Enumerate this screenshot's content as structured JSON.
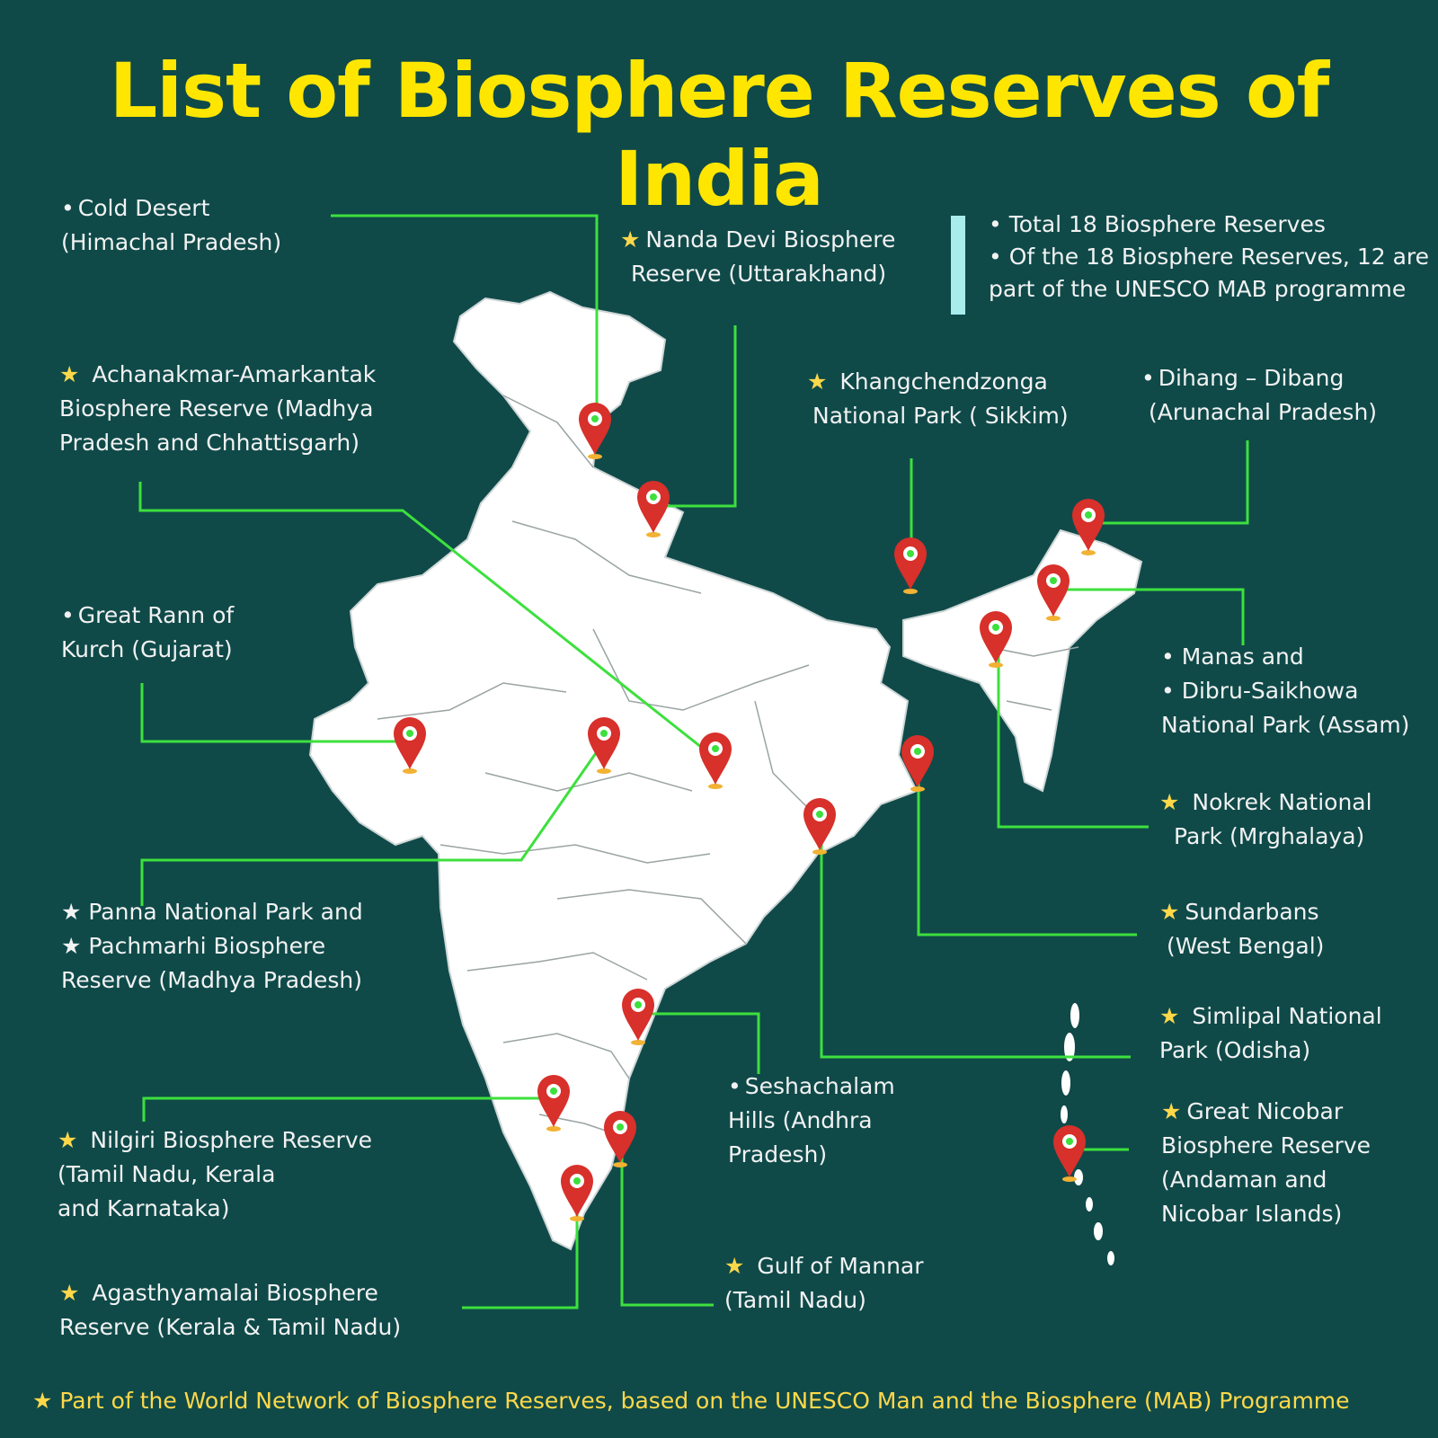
{
  "title": "List of Biosphere Reserves of India",
  "colors": {
    "background": "#0f4a49",
    "title": "#ffe600",
    "leader_line": "#3de03d",
    "map_fill": "#ffffff",
    "pin": "#d8302a",
    "star": "#ffd84a",
    "info_bar": "#a8ecec"
  },
  "info": {
    "lines": [
      "• Total 18 Biosphere Reserves",
      "• Of the 18 Biosphere Reserves, 12 are",
      "part of the UNESCO MAB programme"
    ]
  },
  "reserves": [
    {
      "id": "cold-desert",
      "starred": false,
      "lines": [
        "Cold Desert",
        "(Himachal Pradesh)"
      ]
    },
    {
      "id": "nanda-devi",
      "starred": true,
      "lines": [
        "Nanda Devi Biosphere",
        "Reserve (Uttarakhand)"
      ]
    },
    {
      "id": "achanakmar",
      "starred": true,
      "lines": [
        "Achanakmar-Amarkantak",
        "Biosphere Reserve (Madhya",
        "Pradesh and Chhattisgarh)"
      ]
    },
    {
      "id": "khangchendzonga",
      "starred": true,
      "lines": [
        "Khangchendzonga",
        "National Park ( Sikkim)"
      ]
    },
    {
      "id": "dihang-dibang",
      "starred": false,
      "lines": [
        "Dihang – Dibang",
        "(Arunachal Pradesh)"
      ]
    },
    {
      "id": "great-rann",
      "starred": false,
      "lines": [
        "Great Rann of",
        "Kurch (Gujarat)"
      ]
    },
    {
      "id": "manas-dibru",
      "starred": false,
      "lines": [
        "• Manas and",
        "• Dibru-Saikhowa",
        "National Park (Assam)"
      ]
    },
    {
      "id": "nokrek",
      "starred": true,
      "lines": [
        "Nokrek National",
        "Park (Mrghalaya)"
      ]
    },
    {
      "id": "panna-pachmarhi",
      "starred": false,
      "lines": [
        "★ Panna National Park and",
        "★ Pachmarhi Biosphere",
        "Reserve (Madhya Pradesh)"
      ]
    },
    {
      "id": "sundarbans",
      "starred": true,
      "lines": [
        "Sundarbans",
        "(West Bengal)"
      ]
    },
    {
      "id": "simlipal",
      "starred": true,
      "lines": [
        "Simlipal National",
        "Park (Odisha)"
      ]
    },
    {
      "id": "seshachalam",
      "starred": false,
      "lines": [
        "Seshachalam",
        "Hills (Andhra",
        "Pradesh)"
      ]
    },
    {
      "id": "great-nicobar",
      "starred": true,
      "lines": [
        "Great Nicobar",
        "Biosphere Reserve",
        "(Andaman and",
        "Nicobar Islands)"
      ]
    },
    {
      "id": "nilgiri",
      "starred": true,
      "lines": [
        "Nilgiri Biosphere Reserve",
        "(Tamil Nadu, Kerala",
        "and Karnataka)"
      ]
    },
    {
      "id": "gulf-of-mannar",
      "starred": true,
      "lines": [
        "Gulf of Mannar",
        "(Tamil Nadu)"
      ]
    },
    {
      "id": "agasthyamalai",
      "starred": true,
      "lines": [
        "Agasthyamalai Biosphere",
        "Reserve (Kerala & Tamil Nadu)"
      ]
    }
  ],
  "footer": "★ Part of the World Network of Biosphere Reserves, based on the UNESCO Man and the Biosphere (MAB) Programme"
}
